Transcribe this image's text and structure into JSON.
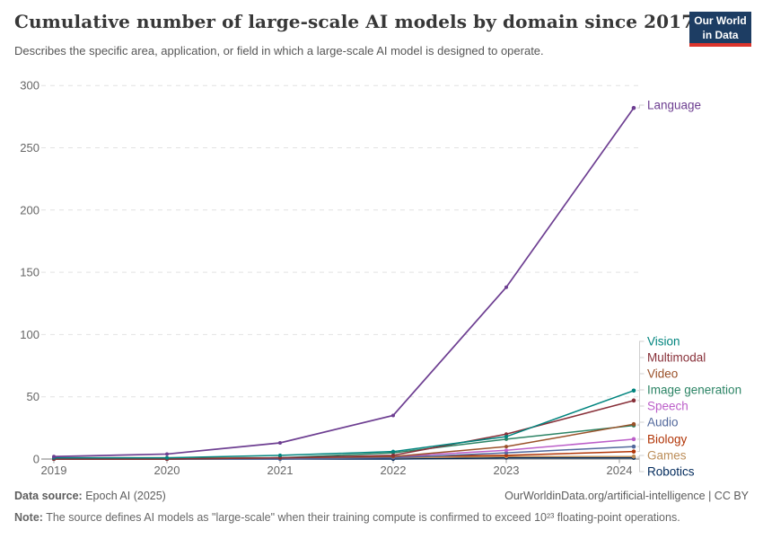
{
  "header": {
    "title": "Cumulative number of large-scale AI models by domain since 2017",
    "subtitle": "Describes the specific area, application, or field in which a large-scale AI model is designed to operate.",
    "logo": {
      "line1": "Our World",
      "line2": "in Data"
    }
  },
  "chart_data": {
    "type": "line",
    "title": "Cumulative number of large-scale AI models by domain since 2017",
    "xlabel": "",
    "ylabel": "",
    "x": [
      2019,
      2020,
      2021,
      2022,
      2023,
      2024
    ],
    "x_tick_labels": [
      "2019",
      "2020",
      "2021",
      "2022",
      "2023",
      "2024"
    ],
    "yticks": [
      0,
      50,
      100,
      150,
      200,
      250,
      300
    ],
    "ylim": [
      0,
      300
    ],
    "grid": "horizontal-dashed",
    "legend_position": "right-direct-labels",
    "series": [
      {
        "name": "Language",
        "color": "#6D3E91",
        "values": [
          2,
          4,
          13,
          35,
          138,
          282
        ]
      },
      {
        "name": "Vision",
        "color": "#00847E",
        "values": [
          1,
          1,
          3,
          6,
          18,
          55
        ]
      },
      {
        "name": "Multimodal",
        "color": "#883039",
        "values": [
          0,
          0,
          1,
          3,
          20,
          47
        ]
      },
      {
        "name": "Video",
        "color": "#9A5129",
        "values": [
          0,
          0,
          1,
          2,
          10,
          28
        ]
      },
      {
        "name": "Image generation",
        "color": "#2C8465",
        "values": [
          0,
          0,
          1,
          5,
          16,
          27
        ]
      },
      {
        "name": "Speech",
        "color": "#BC5FC9",
        "values": [
          0,
          0,
          1,
          2,
          7,
          16
        ]
      },
      {
        "name": "Audio",
        "color": "#52689C",
        "values": [
          0,
          0,
          0,
          1,
          5,
          10
        ]
      },
      {
        "name": "Biology",
        "color": "#B13507",
        "values": [
          0,
          0,
          1,
          2,
          3,
          6
        ]
      },
      {
        "name": "Games",
        "color": "#BC8E5A",
        "values": [
          1,
          1,
          1,
          1,
          2,
          2
        ]
      },
      {
        "name": "Robotics",
        "color": "#00295B",
        "values": [
          0,
          0,
          0,
          0,
          1,
          1
        ]
      }
    ]
  },
  "footer": {
    "datasource_label": "Data source:",
    "datasource_value": " Epoch AI (2025)",
    "attribution": "OurWorldinData.org/artificial-intelligence | CC BY",
    "note_label": "Note:",
    "note_text": " The source defines AI models as \"large-scale\" when their training compute is confirmed to exceed 10²³ floating-point operations."
  }
}
